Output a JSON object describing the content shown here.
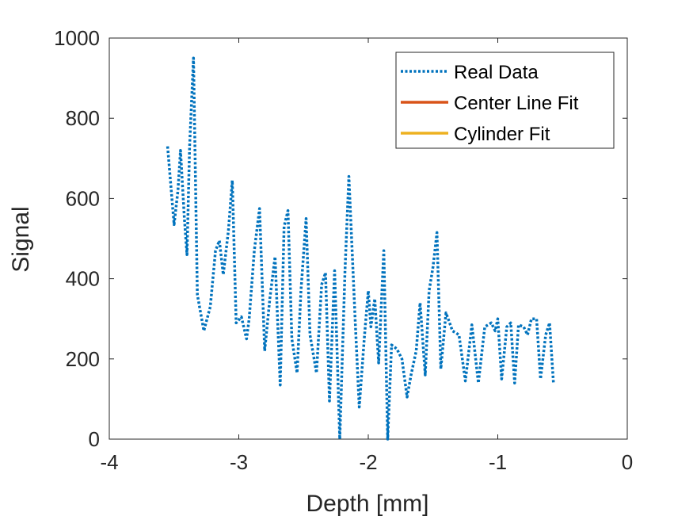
{
  "chart_data": {
    "type": "line",
    "title": "",
    "xlabel": "Depth [mm]",
    "ylabel": "Signal",
    "xlim": [
      -4,
      0
    ],
    "ylim": [
      0,
      1000
    ],
    "xticks": [
      -4,
      -3,
      -2,
      -1,
      0
    ],
    "xtick_labels": [
      "-4",
      "-3",
      "-2",
      "-1",
      "0"
    ],
    "yticks": [
      0,
      200,
      400,
      600,
      800,
      1000
    ],
    "ytick_labels": [
      "0",
      "200",
      "400",
      "600",
      "800",
      "1000"
    ],
    "grid": false,
    "legend_position": "top-right",
    "series": [
      {
        "name": "Real Data",
        "color": "#0072BD",
        "line_style": "dotted",
        "x": [
          -3.55,
          -3.5,
          -3.47,
          -3.45,
          -3.42,
          -3.4,
          -3.38,
          -3.35,
          -3.32,
          -3.27,
          -3.22,
          -3.18,
          -3.15,
          -3.12,
          -3.08,
          -3.05,
          -3.02,
          -2.98,
          -2.94,
          -2.92,
          -2.88,
          -2.84,
          -2.8,
          -2.76,
          -2.72,
          -2.68,
          -2.65,
          -2.62,
          -2.59,
          -2.55,
          -2.52,
          -2.48,
          -2.45,
          -2.4,
          -2.36,
          -2.33,
          -2.3,
          -2.26,
          -2.22,
          -2.18,
          -2.15,
          -2.1,
          -2.07,
          -2.03,
          -2.0,
          -1.98,
          -1.95,
          -1.92,
          -1.88,
          -1.85,
          -1.82,
          -1.78,
          -1.74,
          -1.7,
          -1.67,
          -1.63,
          -1.6,
          -1.56,
          -1.53,
          -1.5,
          -1.47,
          -1.44,
          -1.4,
          -1.35,
          -1.3,
          -1.25,
          -1.2,
          -1.15,
          -1.1,
          -1.05,
          -1.02,
          -1.0,
          -0.97,
          -0.93,
          -0.9,
          -0.87,
          -0.84,
          -0.8,
          -0.77,
          -0.74,
          -0.7,
          -0.67,
          -0.63,
          -0.6,
          -0.57
        ],
        "values": [
          730,
          535,
          620,
          720,
          550,
          460,
          730,
          950,
          360,
          270,
          330,
          470,
          495,
          410,
          520,
          645,
          290,
          305,
          250,
          300,
          470,
          575,
          220,
          350,
          455,
          135,
          530,
          570,
          250,
          165,
          370,
          550,
          260,
          165,
          385,
          415,
          95,
          420,
          0,
          420,
          655,
          290,
          80,
          255,
          370,
          280,
          350,
          190,
          470,
          0,
          235,
          225,
          200,
          105,
          160,
          220,
          340,
          160,
          370,
          430,
          515,
          175,
          315,
          270,
          260,
          145,
          285,
          140,
          280,
          290,
          270,
          300,
          150,
          280,
          290,
          140,
          285,
          280,
          260,
          300,
          300,
          150,
          260,
          290,
          140
        ],
        "visible_points": 31
      },
      {
        "name": "Center Line Fit",
        "color": "#D95319",
        "line_style": "solid",
        "x": [],
        "values": []
      },
      {
        "name": "Cylinder Fit",
        "color": "#EDB120",
        "line_style": "solid",
        "x": [],
        "values": []
      }
    ]
  }
}
